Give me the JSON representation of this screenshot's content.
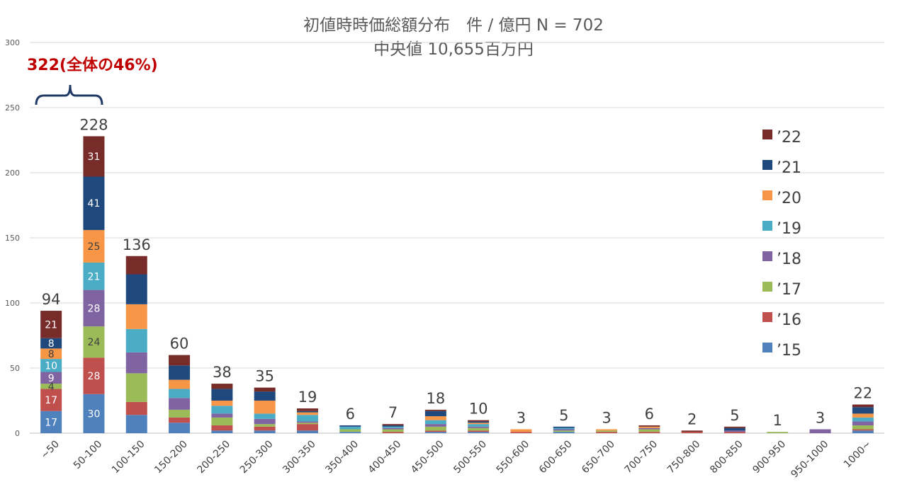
{
  "chart_data": {
    "type": "bar",
    "stacked": true,
    "title": "初値時時価総額分布　件 / 億円 N = 702",
    "subtitle": "中央値 10,655百万円",
    "annotation": "322(全体の46%)",
    "ylim": [
      0,
      300
    ],
    "yticks": [
      "0",
      "50",
      "100",
      "150",
      "200",
      "250",
      "300"
    ],
    "grid": true,
    "legend_position": "right",
    "categories": [
      "~50",
      "50-100",
      "100-150",
      "150-200",
      "200-250",
      "250-300",
      "300-350",
      "350-400",
      "400-450",
      "450-500",
      "500-550",
      "550-600",
      "600-650",
      "650-700",
      "700-750",
      "750-800",
      "800-850",
      "900-950",
      "950-1000",
      "1000~"
    ],
    "totals": [
      94,
      228,
      136,
      60,
      38,
      35,
      19,
      6,
      7,
      18,
      10,
      3,
      5,
      3,
      6,
      2,
      5,
      1,
      3,
      22
    ],
    "series": [
      {
        "name": "’15",
        "color": "#4f81bd",
        "values": [
          17,
          30,
          14,
          8,
          2,
          2,
          2,
          1,
          0,
          1,
          1,
          0,
          1,
          0,
          0,
          0,
          0,
          0,
          0,
          2
        ]
      },
      {
        "name": "’16",
        "color": "#c0504d",
        "values": [
          17,
          28,
          10,
          4,
          4,
          3,
          5,
          0,
          1,
          1,
          1,
          1,
          0,
          1,
          1,
          1,
          1,
          0,
          0,
          1
        ]
      },
      {
        "name": "’17",
        "color": "#9bbb59",
        "values": [
          4,
          24,
          22,
          6,
          6,
          2,
          1,
          2,
          2,
          3,
          2,
          0,
          1,
          1,
          2,
          0,
          0,
          1,
          0,
          3
        ]
      },
      {
        "name": "’18",
        "color": "#8064a2",
        "values": [
          9,
          28,
          16,
          9,
          3,
          4,
          1,
          0,
          1,
          2,
          1,
          0,
          1,
          0,
          1,
          0,
          1,
          0,
          3,
          3
        ]
      },
      {
        "name": "’19",
        "color": "#4bacc6",
        "values": [
          10,
          21,
          18,
          7,
          6,
          4,
          5,
          2,
          1,
          3,
          2,
          0,
          1,
          0,
          0,
          0,
          0,
          0,
          0,
          3
        ]
      },
      {
        "name": "’20",
        "color": "#f79646",
        "values": [
          8,
          25,
          19,
          7,
          4,
          10,
          2,
          0,
          0,
          3,
          1,
          2,
          0,
          1,
          1,
          0,
          0,
          0,
          0,
          3
        ]
      },
      {
        "name": "’21",
        "color": "#1f497d",
        "values": [
          8,
          41,
          23,
          11,
          9,
          7,
          1,
          1,
          1,
          4,
          1,
          0,
          1,
          0,
          0,
          0,
          2,
          0,
          0,
          5
        ]
      },
      {
        "name": "’22",
        "color": "#772c2a",
        "values": [
          21,
          31,
          14,
          8,
          4,
          3,
          2,
          0,
          1,
          1,
          1,
          0,
          0,
          0,
          1,
          1,
          1,
          0,
          0,
          2
        ]
      }
    ],
    "segment_labels": {
      "0": [
        17,
        17,
        4,
        9,
        10,
        8,
        8,
        21
      ],
      "1": [
        30,
        28,
        24,
        28,
        21,
        25,
        41,
        31
      ]
    }
  }
}
